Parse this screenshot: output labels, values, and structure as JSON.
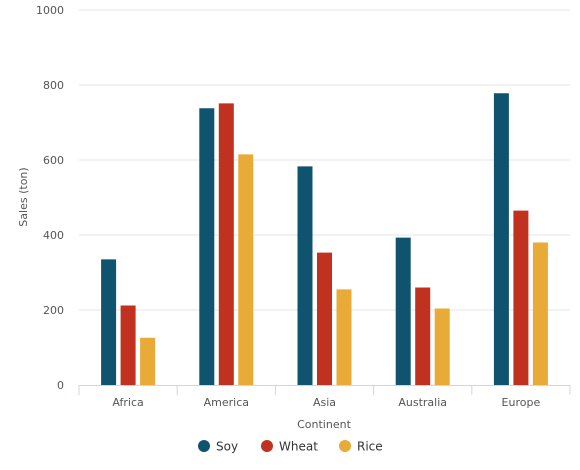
{
  "chart_data": {
    "type": "bar",
    "title": "",
    "xlabel": "Continent",
    "ylabel": "Sales (ton)",
    "ylim": [
      0,
      1000
    ],
    "yticks": [
      0,
      200,
      400,
      600,
      800,
      1000
    ],
    "grid": true,
    "legend_position": "bottom",
    "categories": [
      "Africa",
      "America",
      "Asia",
      "Australia",
      "Europe"
    ],
    "series": [
      {
        "name": "Soy",
        "color": "#10536f",
        "values": [
          335,
          738,
          583,
          393,
          778
        ]
      },
      {
        "name": "Wheat",
        "color": "#c0311f",
        "values": [
          212,
          751,
          353,
          260,
          465
        ]
      },
      {
        "name": "Rice",
        "color": "#e8ab37",
        "values": [
          126,
          615,
          255,
          204,
          380
        ]
      }
    ]
  }
}
